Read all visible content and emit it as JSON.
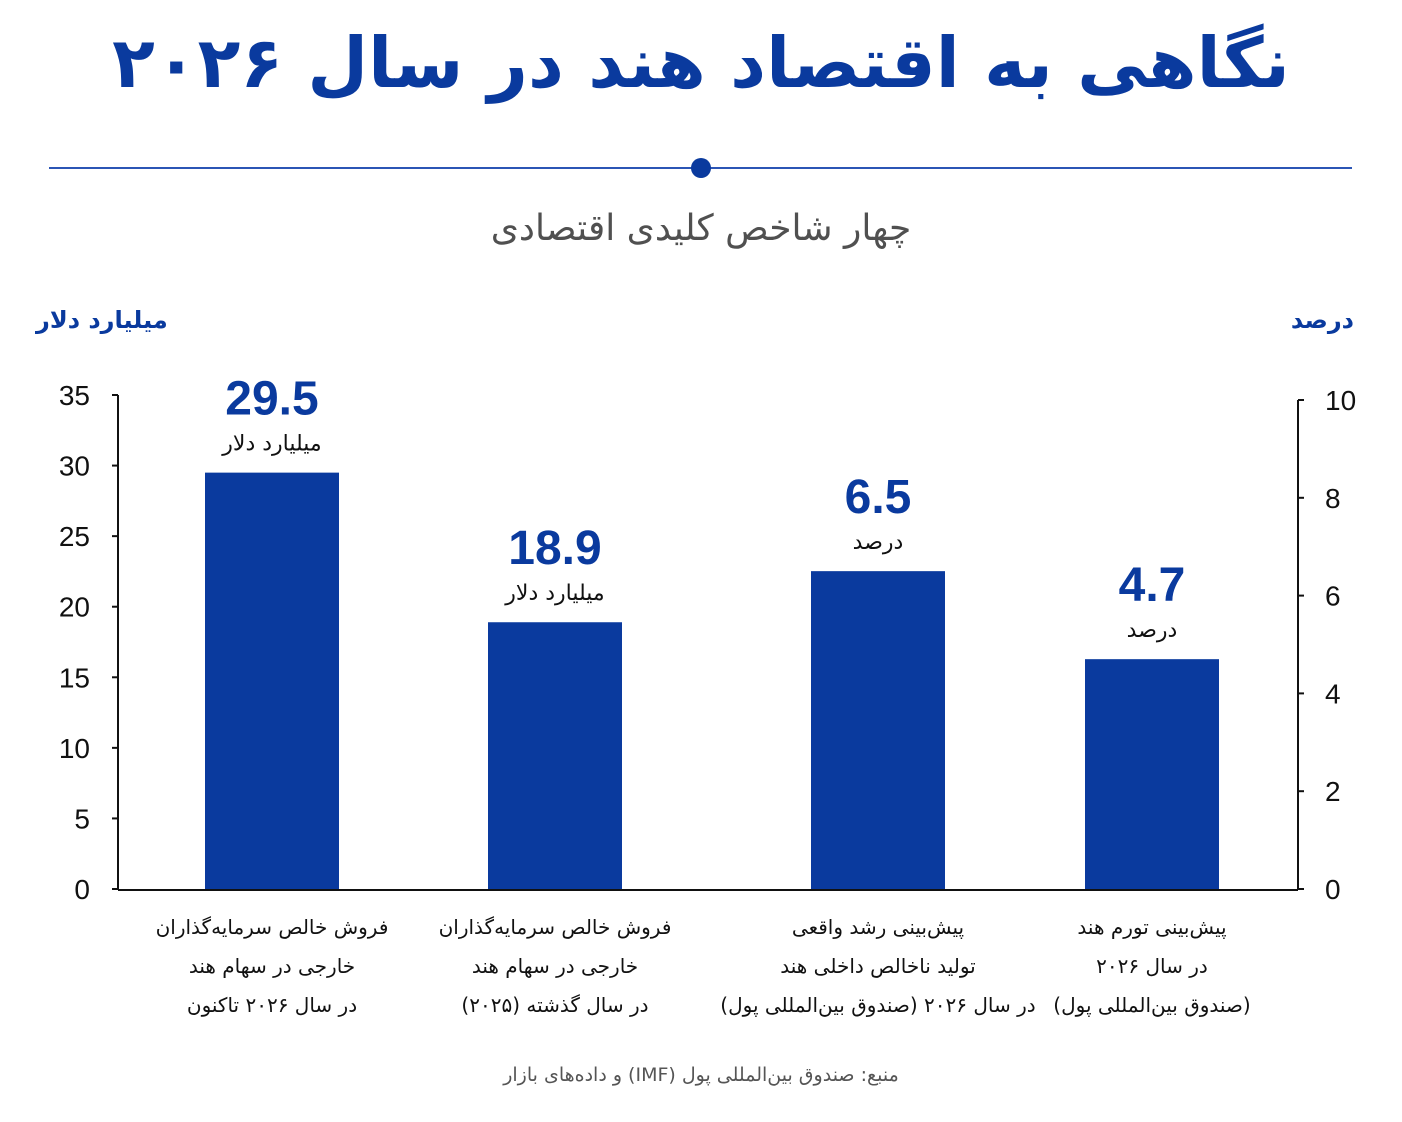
{
  "header": {
    "title": "نگاهی به اقتصاد هند در سال ۲۰۲۶",
    "subtitle": "چهار شاخص کلیدی اقتصادی"
  },
  "axis_units": {
    "left": "میلیارد دلار",
    "right": "درصد"
  },
  "source": "منبع: صندوق بین‌المللی پول (IMF) و داده‌های بازار",
  "colors": {
    "bar": "#0a3a9e",
    "title": "#0a3a9e",
    "axis": "#111111"
  },
  "chart_data": {
    "type": "bar",
    "left_axis": {
      "min": 0,
      "max": 35,
      "ticks": [
        0,
        5,
        10,
        15,
        20,
        25,
        30,
        35
      ]
    },
    "right_axis": {
      "min": 0,
      "max": 10,
      "ticks": [
        0,
        2,
        4,
        6,
        8,
        10
      ]
    },
    "grid": false,
    "bars": [
      {
        "value": 29.5,
        "label": "29.5",
        "unit": "میلیارد دلار",
        "axis": "left",
        "category_lines": [
          "فروش خالص سرمایه‌گذاران",
          "خارجی در سهام هند",
          "در سال ۲۰۲۶ تاکنون"
        ]
      },
      {
        "value": 18.9,
        "label": "18.9",
        "unit": "میلیارد دلار",
        "axis": "left",
        "category_lines": [
          "فروش خالص سرمایه‌گذاران",
          "خارجی در سهام هند",
          "در سال گذشته (۲۰۲۵)"
        ]
      },
      {
        "value": 6.5,
        "label": "6.5",
        "unit": "درصد",
        "axis": "right",
        "category_lines": [
          "پیش‌بینی رشد واقعی",
          "تولید ناخالص داخلی هند",
          "در سال ۲۰۲۶ (صندوق بین‌المللی پول)"
        ]
      },
      {
        "value": 4.7,
        "label": "4.7",
        "unit": "درصد",
        "axis": "right",
        "category_lines": [
          "پیش‌بینی تورم هند",
          "در سال ۲۰۲۶",
          "(صندوق بین‌المللی پول)"
        ]
      }
    ]
  }
}
